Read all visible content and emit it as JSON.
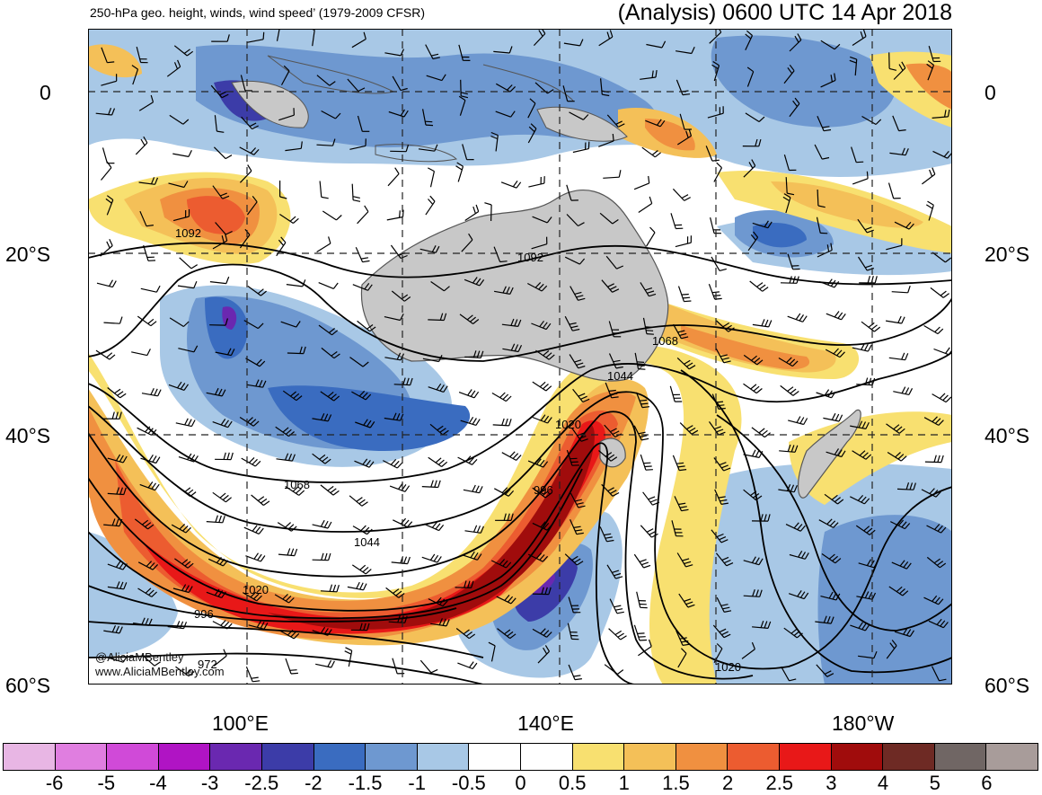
{
  "header": {
    "left_title": "250-hPa geo. height, winds, wind speed’ (1979-2009 CFSR)",
    "right_title": "(Analysis) 0600 UTC 14 Apr 2018"
  },
  "map": {
    "lat_labels": [
      "0",
      "20°S",
      "40°S",
      "60°S"
    ],
    "lon_labels": [
      "100°E",
      "140°E",
      "180°W"
    ],
    "credits": [
      "@AliciaMBentley",
      "www.AliciaMBentley.com"
    ],
    "contour_labels": [
      "1092",
      "1092",
      "1068",
      "1068",
      "1044",
      "1044",
      "1020",
      "1020",
      "1020",
      "996",
      "996",
      "972"
    ],
    "colors": {
      "land": "#c8c8c8",
      "coast": "#555555",
      "contour": "#000000",
      "grid": "#222222"
    }
  },
  "colorbar": {
    "tick_labels": [
      "-6",
      "-5",
      "-4",
      "-3",
      "-2.5",
      "-2",
      "-1.5",
      "-1",
      "-0.5",
      "0",
      "0.5",
      "1",
      "1.5",
      "2",
      "2.5",
      "3",
      "4",
      "5",
      "6"
    ],
    "colors": [
      "#e8b6e4",
      "#e07ee0",
      "#d04ad8",
      "#b014c4",
      "#6a28b0",
      "#3c3ca8",
      "#3a6cc0",
      "#6e98d0",
      "#a8c8e6",
      "#ffffff",
      "#ffffff",
      "#f8e070",
      "#f4c058",
      "#f09040",
      "#ec5c30",
      "#e81818",
      "#a00c0c",
      "#6e2a24",
      "#706664",
      "#a89c9a"
    ]
  }
}
